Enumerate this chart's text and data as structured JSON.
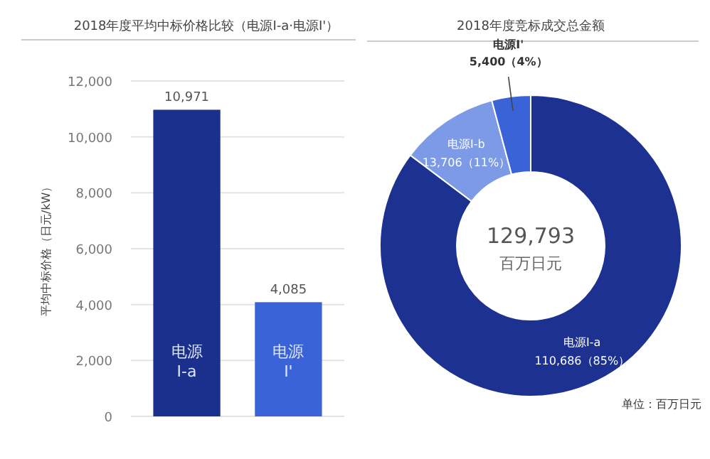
{
  "chart_data": [
    {
      "type": "bar",
      "title": "2018年度平均中标价格比较（电源I-a·电源I'）",
      "ylabel": "平均中标价格（日元/kW）",
      "categories": [
        "电源\nI-a",
        "电源\nI'"
      ],
      "values": [
        10971,
        4085
      ],
      "colors": [
        "#1b2f8c",
        "#3a63d8"
      ],
      "value_labels": [
        "10,971",
        "4,085"
      ],
      "ylim": [
        0,
        12000
      ],
      "yticks": [
        {
          "value": 0,
          "label": "0"
        },
        {
          "value": 2000,
          "label": "2,000"
        },
        {
          "value": 4000,
          "label": "4,000"
        },
        {
          "value": 6000,
          "label": "6,000"
        },
        {
          "value": 8000,
          "label": "8,000"
        },
        {
          "value": 10000,
          "label": "10,000"
        },
        {
          "value": 12000,
          "label": "12,000"
        }
      ],
      "grid": "y"
    },
    {
      "type": "donut",
      "title": "2018年度竞标成交总金额",
      "categories": [
        "电源I-a",
        "电源I-b",
        "电源I'"
      ],
      "values": [
        110686,
        13706,
        5400
      ],
      "colors": [
        "#1d3290",
        "#7c9ae6",
        "#3a63d8"
      ],
      "value_labels": [
        "110,686（85%）",
        "13,706（11%）",
        "5,400（4%）"
      ],
      "annotations": [
        "129,793",
        "百万日元",
        "单位：百万日元"
      ]
    }
  ]
}
